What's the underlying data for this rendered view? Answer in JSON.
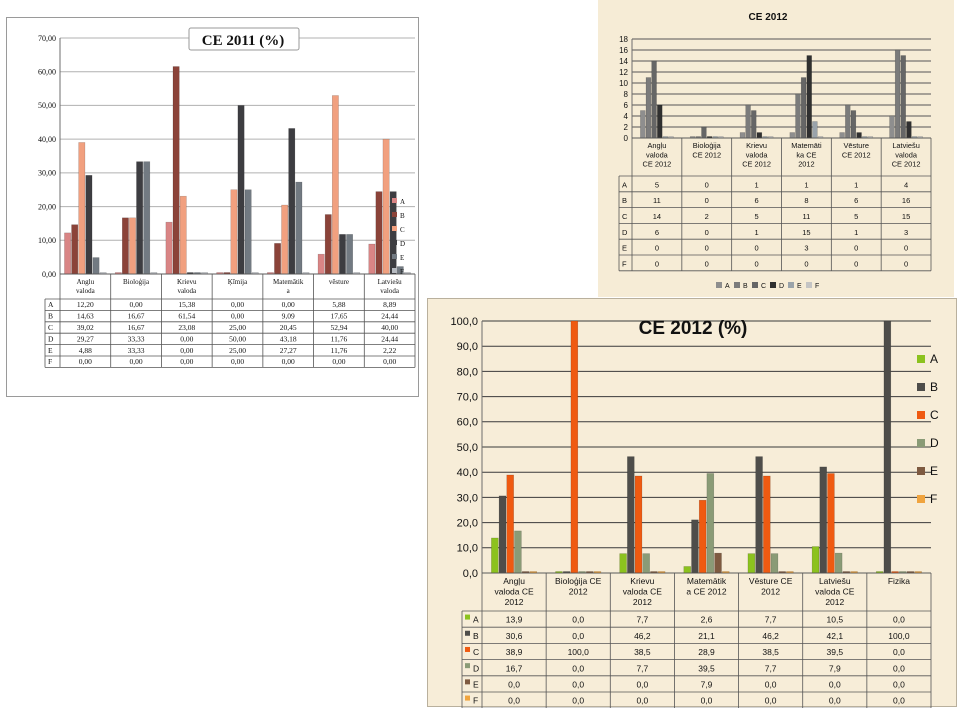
{
  "chart_data": [
    {
      "type": "bar",
      "title": "CE 2011 (%)",
      "categories": [
        [
          "Anglu",
          "valoda"
        ],
        [
          "Bioloģija"
        ],
        [
          "Krievu",
          "valoda"
        ],
        [
          "Ķīmija"
        ],
        [
          "Matemātik",
          "a"
        ],
        [
          "vēsture"
        ],
        [
          "Latviešu",
          "valoda"
        ]
      ],
      "series": [
        {
          "name": "A",
          "color": "#d98585",
          "values": [
            12.2,
            0.0,
            15.38,
            0.0,
            0.0,
            5.88,
            8.89
          ],
          "labels": [
            "12,20",
            "0,00",
            "15,38",
            "0,00",
            "0,00",
            "5,88",
            "8,89"
          ]
        },
        {
          "name": "B",
          "color": "#8b4339",
          "values": [
            14.63,
            16.67,
            61.54,
            0.0,
            9.09,
            17.65,
            24.44
          ],
          "labels": [
            "14,63",
            "16,67",
            "61,54",
            "0,00",
            "9,09",
            "17,65",
            "24,44"
          ]
        },
        {
          "name": "C",
          "color": "#f1a07f",
          "values": [
            39.02,
            16.67,
            23.08,
            25.0,
            20.45,
            52.94,
            40.0
          ],
          "labels": [
            "39,02",
            "16,67",
            "23,08",
            "25,00",
            "20,45",
            "52,94",
            "40,00"
          ]
        },
        {
          "name": "D",
          "color": "#3d3d41",
          "values": [
            29.27,
            33.33,
            0.0,
            50.0,
            43.18,
            11.76,
            24.44
          ],
          "labels": [
            "29,27",
            "33,33",
            "0,00",
            "50,00",
            "43,18",
            "11,76",
            "24,44"
          ]
        },
        {
          "name": "E",
          "color": "#727a82",
          "values": [
            4.88,
            33.33,
            0.0,
            25.0,
            27.27,
            11.76,
            2.22
          ],
          "labels": [
            "4,88",
            "33,33",
            "0,00",
            "25,00",
            "27,27",
            "11,76",
            "2,22"
          ]
        },
        {
          "name": "F",
          "color": "#b8bcc2",
          "values": [
            0.0,
            0.0,
            0.0,
            0.0,
            0.0,
            0.0,
            0.0
          ],
          "labels": [
            "0,00",
            "0,00",
            "0,00",
            "0,00",
            "0,00",
            "0,00",
            "0,00"
          ]
        }
      ],
      "yticks": [
        "0,00",
        "10,00",
        "20,00",
        "30,00",
        "40,00",
        "50,00",
        "60,00",
        "70,00"
      ],
      "ylim": [
        0,
        70
      ],
      "grid": true,
      "legend": "right"
    },
    {
      "type": "bar",
      "title": "CE 2012",
      "categories": [
        [
          "Angļu",
          "valoda",
          "CE 2012"
        ],
        [
          "Bioloģija",
          "CE 2012"
        ],
        [
          "Krievu",
          "valoda",
          "CE 2012"
        ],
        [
          "Matemāti",
          "ka CE",
          "2012"
        ],
        [
          "Vēsture",
          "CE 2012"
        ],
        [
          "Latviešu",
          "valoda",
          "CE 2012"
        ]
      ],
      "series": [
        {
          "name": "A",
          "color": "#8e8e8e",
          "values": [
            5,
            0,
            1,
            1,
            1,
            4
          ],
          "labels": [
            "5",
            "0",
            "1",
            "1",
            "1",
            "4"
          ]
        },
        {
          "name": "B",
          "color": "#7b7b7b",
          "values": [
            11,
            0,
            6,
            8,
            6,
            16
          ],
          "labels": [
            "11",
            "0",
            "6",
            "8",
            "6",
            "16"
          ]
        },
        {
          "name": "C",
          "color": "#666666",
          "values": [
            14,
            2,
            5,
            11,
            5,
            15
          ],
          "labels": [
            "14",
            "2",
            "5",
            "11",
            "5",
            "15"
          ]
        },
        {
          "name": "D",
          "color": "#303030",
          "values": [
            6,
            0,
            1,
            15,
            1,
            3
          ],
          "labels": [
            "6",
            "0",
            "1",
            "15",
            "1",
            "3"
          ]
        },
        {
          "name": "E",
          "color": "#9aa3aa",
          "values": [
            0,
            0,
            0,
            3,
            0,
            0
          ],
          "labels": [
            "0",
            "0",
            "0",
            "3",
            "0",
            "0"
          ]
        },
        {
          "name": "F",
          "color": "#c4c4c4",
          "values": [
            0,
            0,
            0,
            0,
            0,
            0
          ],
          "labels": [
            "0",
            "0",
            "0",
            "0",
            "0",
            "0"
          ]
        }
      ],
      "yticks": [
        "0",
        "2",
        "4",
        "6",
        "8",
        "10",
        "12",
        "14",
        "16",
        "18"
      ],
      "ylim": [
        0,
        18
      ],
      "grid": true,
      "legend": "bottom"
    },
    {
      "type": "bar",
      "title": "CE 2012 (%)",
      "categories": [
        [
          "Angļu",
          "valoda CE",
          "2012"
        ],
        [
          "Bioloģija CE",
          "2012"
        ],
        [
          "Krievu",
          "valoda CE",
          "2012"
        ],
        [
          "Matemātik",
          "a CE 2012"
        ],
        [
          "Vēsture CE",
          "2012"
        ],
        [
          "Latviešu",
          "valoda CE",
          "2012"
        ],
        [
          "Fizika"
        ]
      ],
      "series": [
        {
          "name": "A",
          "color": "#8cc21e",
          "values": [
            13.9,
            0.0,
            7.7,
            2.6,
            7.7,
            10.5,
            0.0
          ],
          "labels": [
            "13,9",
            "0,0",
            "7,7",
            "2,6",
            "7,7",
            "10,5",
            "0,0"
          ]
        },
        {
          "name": "B",
          "color": "#4e4d4a",
          "values": [
            30.6,
            0.0,
            46.2,
            21.1,
            46.2,
            42.1,
            100.0
          ],
          "labels": [
            "30,6",
            "0,0",
            "46,2",
            "21,1",
            "46,2",
            "42,1",
            "100,0"
          ]
        },
        {
          "name": "C",
          "color": "#ef5a11",
          "values": [
            38.9,
            100.0,
            38.5,
            28.9,
            38.5,
            39.5,
            0.0
          ],
          "labels": [
            "38,9",
            "100,0",
            "38,5",
            "28,9",
            "38,5",
            "39,5",
            "0,0"
          ]
        },
        {
          "name": "D",
          "color": "#8a9b76",
          "values": [
            16.7,
            0.0,
            7.7,
            39.5,
            7.7,
            7.9,
            0.0
          ],
          "labels": [
            "16,7",
            "0,0",
            "7,7",
            "39,5",
            "7,7",
            "7,9",
            "0,0"
          ]
        },
        {
          "name": "E",
          "color": "#7e5a40",
          "values": [
            0.0,
            0.0,
            0.0,
            7.9,
            0.0,
            0.0,
            0.0
          ],
          "labels": [
            "0,0",
            "0,0",
            "0,0",
            "7,9",
            "0,0",
            "0,0",
            "0,0"
          ]
        },
        {
          "name": "F",
          "color": "#f0a43e",
          "values": [
            0.0,
            0.0,
            0.0,
            0.0,
            0.0,
            0.0,
            0.0
          ],
          "labels": [
            "0,0",
            "0,0",
            "0,0",
            "0,0",
            "0,0",
            "0,0",
            "0,0"
          ]
        }
      ],
      "yticks": [
        "0,0",
        "10,0",
        "20,0",
        "30,0",
        "40,0",
        "50,0",
        "60,0",
        "70,0",
        "80,0",
        "90,0",
        "100,0"
      ],
      "ylim": [
        0,
        100
      ],
      "grid": true,
      "legend": "right"
    }
  ]
}
